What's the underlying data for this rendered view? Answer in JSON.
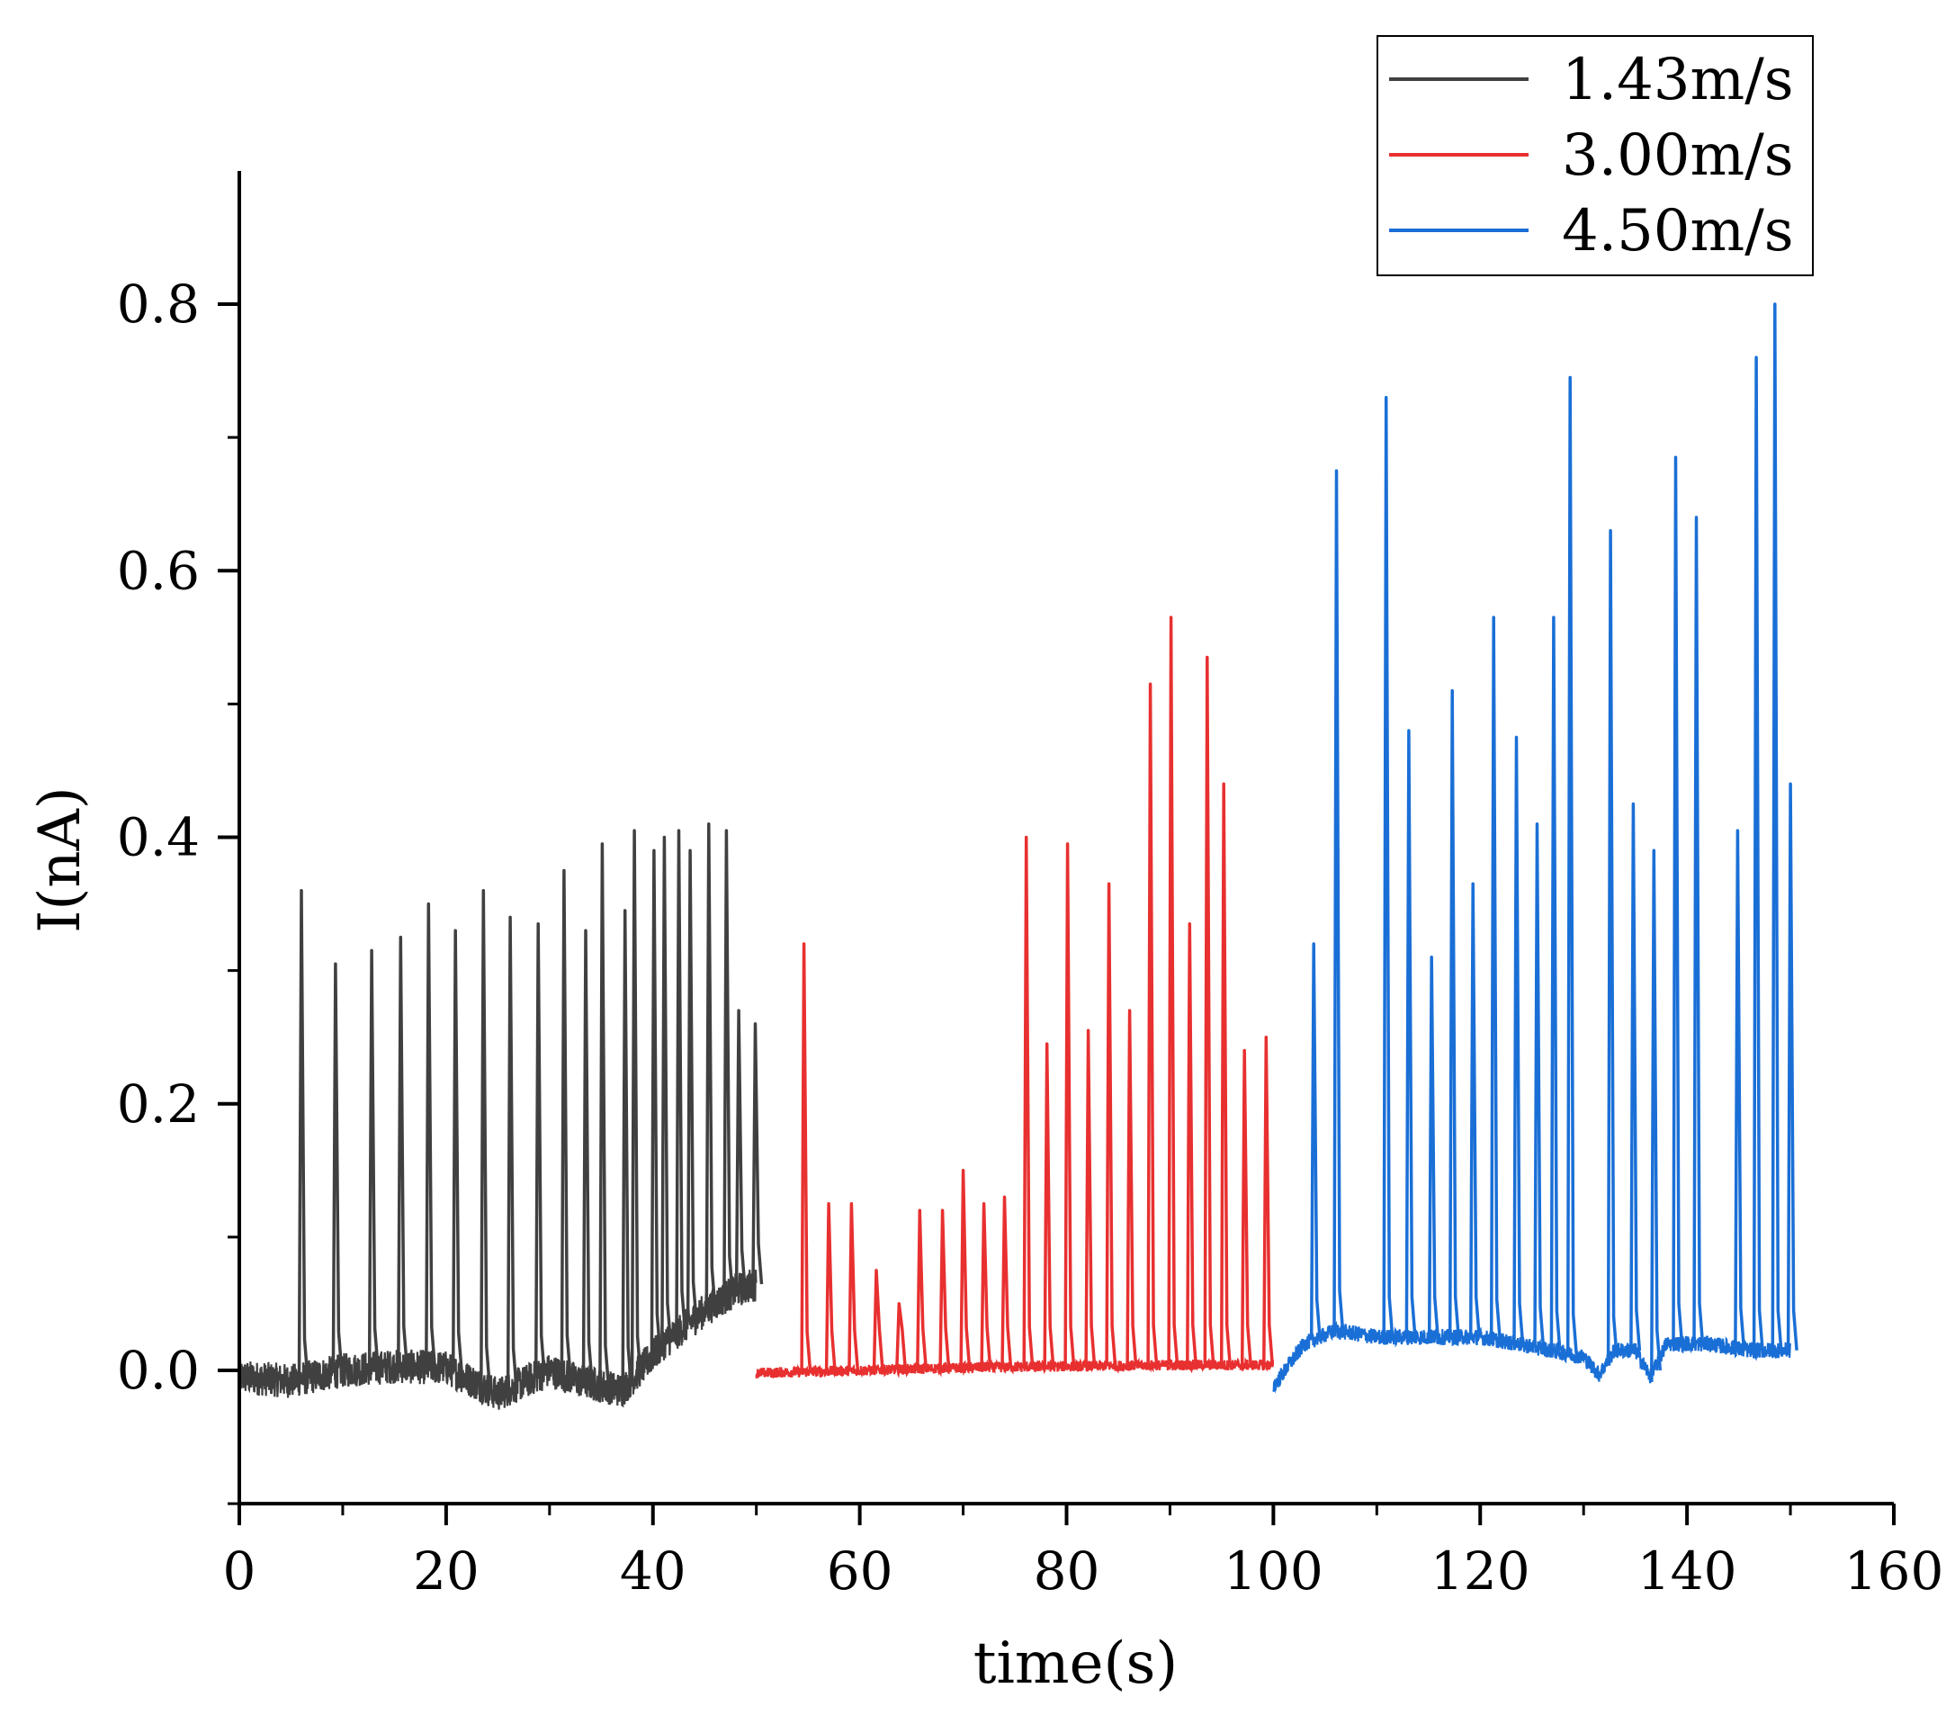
{
  "chart_data": {
    "type": "line",
    "xlabel": "time(s)",
    "ylabel": "I(nA)",
    "xlim": [
      0,
      160
    ],
    "ylim": [
      -0.1,
      0.9
    ],
    "x_ticks": [
      0,
      20,
      40,
      60,
      80,
      100,
      120,
      140,
      160
    ],
    "x_tick_labels": [
      "0",
      "20",
      "40",
      "60",
      "80",
      "100",
      "120",
      "140",
      "160"
    ],
    "y_ticks": [
      0.0,
      0.2,
      0.4,
      0.6,
      0.8
    ],
    "y_tick_labels": [
      "0.0",
      "0.2",
      "0.4",
      "0.6",
      "0.8"
    ],
    "legend_position": "top-right",
    "series": [
      {
        "name": "1.43m/s",
        "color": "#404040",
        "x_range": [
          0,
          50
        ],
        "baseline": [
          [
            0,
            -0.005
          ],
          [
            5,
            -0.008
          ],
          [
            10,
            0.0
          ],
          [
            15,
            0.003
          ],
          [
            20,
            0.002
          ],
          [
            25,
            -0.018
          ],
          [
            30,
            0.0
          ],
          [
            33,
            -0.008
          ],
          [
            37,
            -0.015
          ],
          [
            41,
            0.02
          ],
          [
            45,
            0.045
          ],
          [
            48,
            0.06
          ],
          [
            50,
            0.065
          ]
        ],
        "noise": 0.013,
        "peaks": [
          [
            6,
            0.36
          ],
          [
            9.3,
            0.305
          ],
          [
            12.8,
            0.315
          ],
          [
            15.6,
            0.325
          ],
          [
            18.3,
            0.35
          ],
          [
            20.9,
            0.33
          ],
          [
            23.6,
            0.36
          ],
          [
            26.2,
            0.34
          ],
          [
            28.9,
            0.335
          ],
          [
            31.4,
            0.375
          ],
          [
            33.5,
            0.33
          ],
          [
            35.1,
            0.395
          ],
          [
            37.3,
            0.345
          ],
          [
            38.2,
            0.405
          ],
          [
            40.1,
            0.39
          ],
          [
            41.1,
            0.4
          ],
          [
            42.5,
            0.405
          ],
          [
            43.6,
            0.39
          ],
          [
            45.4,
            0.41
          ],
          [
            47.1,
            0.405
          ],
          [
            48.3,
            0.27
          ],
          [
            49.9,
            0.26
          ]
        ]
      },
      {
        "name": "3.00m/s",
        "color": "#e83030",
        "x_range": [
          50,
          100
        ],
        "baseline": [
          [
            50,
            -0.002
          ],
          [
            60,
            0.0
          ],
          [
            70,
            0.002
          ],
          [
            80,
            0.003
          ],
          [
            90,
            0.004
          ],
          [
            100,
            0.004
          ]
        ],
        "noise": 0.004,
        "peaks": [
          [
            54.6,
            0.32
          ],
          [
            57,
            0.125
          ],
          [
            59.2,
            0.125
          ],
          [
            61.6,
            0.075
          ],
          [
            63.8,
            0.05
          ],
          [
            65.8,
            0.12
          ],
          [
            68,
            0.12
          ],
          [
            70,
            0.15
          ],
          [
            72,
            0.125
          ],
          [
            74,
            0.13
          ],
          [
            76.1,
            0.4
          ],
          [
            78.1,
            0.245
          ],
          [
            80.1,
            0.395
          ],
          [
            82.1,
            0.255
          ],
          [
            84.1,
            0.365
          ],
          [
            86.1,
            0.27
          ],
          [
            88.1,
            0.515
          ],
          [
            90.1,
            0.565
          ],
          [
            91.9,
            0.335
          ],
          [
            93.6,
            0.535
          ],
          [
            95.2,
            0.44
          ],
          [
            97.2,
            0.24
          ],
          [
            99.3,
            0.25
          ]
        ]
      },
      {
        "name": "4.50m/s",
        "color": "#1a6fd6",
        "x_range": [
          100,
          150
        ],
        "baseline": [
          [
            100,
            -0.012
          ],
          [
            103,
            0.02
          ],
          [
            106,
            0.03
          ],
          [
            110,
            0.025
          ],
          [
            115,
            0.025
          ],
          [
            120,
            0.025
          ],
          [
            125,
            0.018
          ],
          [
            130,
            0.01
          ],
          [
            131.5,
            -0.003
          ],
          [
            133,
            0.015
          ],
          [
            135,
            0.015
          ],
          [
            136.5,
            -0.005
          ],
          [
            138,
            0.02
          ],
          [
            142,
            0.02
          ],
          [
            146,
            0.015
          ],
          [
            150,
            0.015
          ]
        ],
        "noise": 0.006,
        "peaks": [
          [
            103.9,
            0.32
          ],
          [
            106.1,
            0.675
          ],
          [
            110.9,
            0.73
          ],
          [
            113.1,
            0.48
          ],
          [
            115.3,
            0.31
          ],
          [
            117.3,
            0.51
          ],
          [
            119.3,
            0.365
          ],
          [
            121.3,
            0.565
          ],
          [
            123.5,
            0.475
          ],
          [
            125.5,
            0.41
          ],
          [
            127.1,
            0.565
          ],
          [
            128.7,
            0.745
          ],
          [
            132.6,
            0.63
          ],
          [
            134.8,
            0.425
          ],
          [
            136.8,
            0.39
          ],
          [
            138.9,
            0.685
          ],
          [
            140.9,
            0.64
          ],
          [
            144.9,
            0.405
          ],
          [
            146.7,
            0.76
          ],
          [
            148.5,
            0.8
          ],
          [
            150,
            0.44
          ]
        ]
      }
    ]
  }
}
